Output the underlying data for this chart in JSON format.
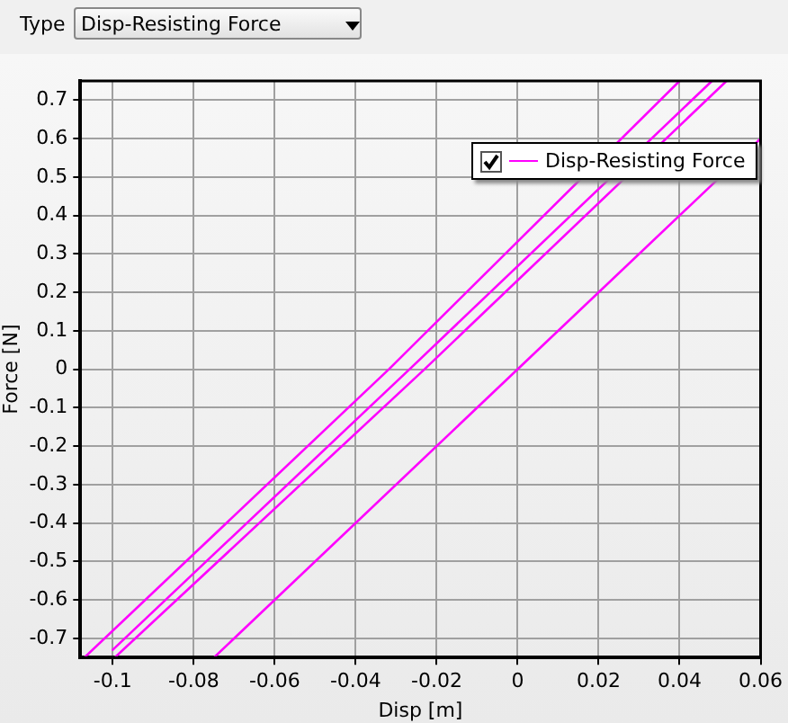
{
  "chart_data": {
    "type": "line",
    "xlabel": "Disp [m]",
    "ylabel": "Force [N]",
    "annotations": [
      "Type",
      "Disp-Resisting Force"
    ],
    "xlim": [
      -0.108,
      0.06
    ],
    "xticks": [
      -0.1,
      -0.08,
      -0.06,
      -0.04,
      -0.02,
      0,
      0.02,
      0.04,
      0.06
    ],
    "ylim": [
      -0.75,
      0.75
    ],
    "yticks": [
      -0.7,
      -0.6,
      -0.5,
      -0.4,
      -0.3,
      -0.2,
      -0.1,
      0,
      0.1,
      0.2,
      0.3,
      0.4,
      0.5,
      0.6,
      0.7
    ],
    "grid": true,
    "legend": "top right",
    "marker": "none",
    "line_style": "solid",
    "series": [
      {
        "name": "Disp-Resisting Force",
        "color": "#ff00ff",
        "x": [
          -0.075,
          0.06
        ],
        "values": [
          -0.75,
          0.6
        ]
      },
      {
        "color": "#ff00ff",
        "x": [
          -0.107,
          -0.0318,
          0.04
        ],
        "values": [
          -0.75,
          0,
          0.75
        ]
      },
      {
        "color": "#ff00ff",
        "x": [
          -0.1,
          -0.0267,
          0.048
        ],
        "values": [
          -0.73,
          0,
          0.75
        ]
      },
      {
        "color": "#ff00ff",
        "x": [
          -0.0995,
          -0.023,
          0.0516
        ],
        "values": [
          -0.75,
          0,
          0.75
        ]
      }
    ]
  }
}
